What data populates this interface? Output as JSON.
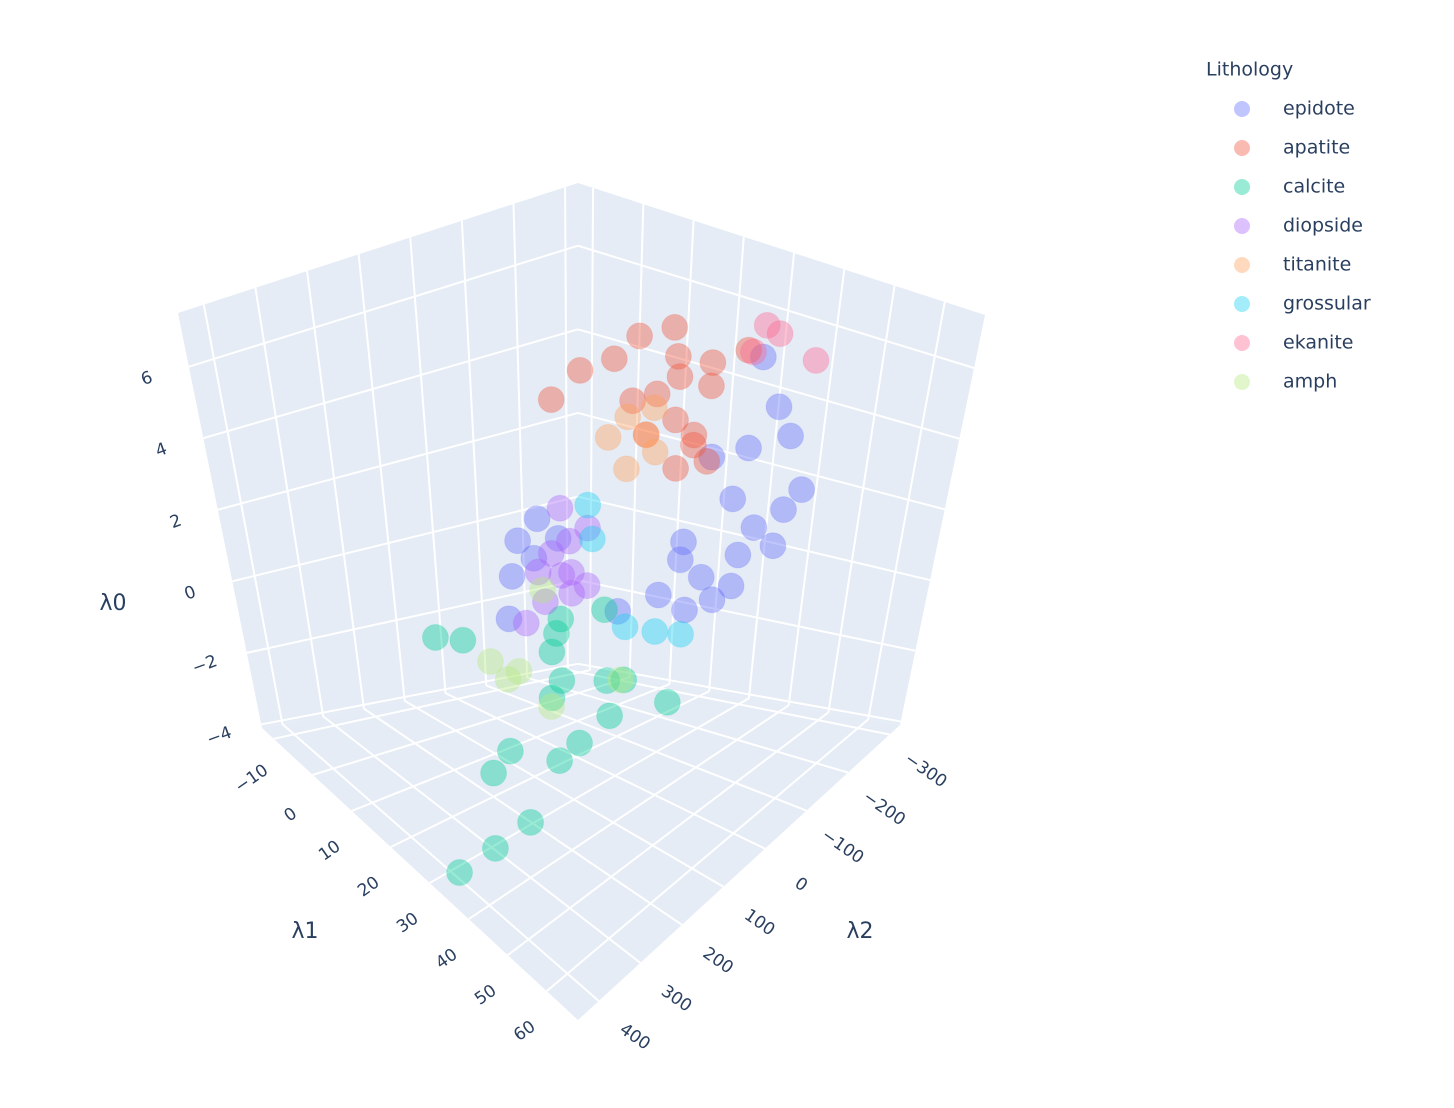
{
  "chart_data": {
    "type": "scatter3d",
    "legend_title": "Lithology",
    "xaxis_title": "λ1",
    "yaxis_title": "λ2",
    "zaxis_title": "λ0",
    "xlim": [
      -13,
      68
    ],
    "ylim": [
      -325,
      450
    ],
    "zlim": [
      -4.1,
      7.5
    ],
    "xticks": [
      {
        "value": -10,
        "label": "−10"
      },
      0,
      10,
      20,
      30,
      40,
      50,
      60
    ],
    "yticks": [
      {
        "value": -300,
        "label": "−300"
      },
      {
        "value": -200,
        "label": "−200"
      },
      {
        "value": -100,
        "label": "−100"
      },
      0,
      100,
      200,
      300,
      400
    ],
    "zticks": [
      {
        "value": -4,
        "label": "−4"
      },
      {
        "value": -2,
        "label": "−2"
      },
      0,
      2,
      4,
      6
    ],
    "grid": true,
    "series": [
      {
        "name": "epidote",
        "color": "#636efa",
        "x": [
          48,
          45,
          53,
          47,
          50,
          44,
          52,
          58,
          58,
          55,
          50,
          52,
          42,
          53,
          56,
          49,
          22,
          17,
          18,
          17,
          36,
          20,
          24,
          46,
          51
        ],
        "y": [
          -3,
          10,
          -20,
          20,
          -10,
          5,
          -40,
          -104,
          -69,
          -70,
          -80,
          -116,
          30,
          -60,
          -90,
          -50,
          100,
          110,
          105,
          120,
          60,
          90,
          75,
          -30,
          -55
        ],
        "z": [
          1.5,
          2.3,
          1.4,
          0.8,
          1.0,
          1.8,
          2.0,
          3.5,
          5.0,
          5.6,
          6.6,
          1.8,
          1.0,
          2.6,
          3.0,
          3.2,
          2.3,
          0.7,
          1.6,
          -0.3,
          0.5,
          1.2,
          1.8,
          4.2,
          4.5
        ]
      },
      {
        "name": "apatite",
        "color": "#EF553B",
        "x": [
          35.6,
          33,
          38,
          36,
          34,
          30,
          20,
          16,
          25,
          40,
          42,
          37,
          32,
          39,
          45,
          35,
          28,
          41
        ],
        "y": [
          -54,
          -40,
          -70,
          -50,
          -60,
          -20,
          -10,
          10,
          -30,
          -80,
          -60,
          -45,
          -30,
          -90,
          -100,
          -65,
          -50,
          -40
        ],
        "z": [
          4.6,
          5.2,
          4.0,
          6.2,
          6.8,
          5.0,
          5.4,
          4.6,
          5.8,
          5.5,
          3.8,
          3.5,
          4.2,
          6.0,
          6.5,
          5.6,
          6.4,
          4.5
        ]
      },
      {
        "name": "calcite",
        "color": "#00cc96",
        "x": [
          32,
          26,
          28,
          7,
          44.5,
          36.4,
          40,
          29.5,
          36.4,
          35.6,
          34.4,
          37.6,
          29,
          31,
          26,
          12.5,
          34,
          36.4,
          27
        ],
        "y": [
          396,
          90,
          229,
          194,
          24,
          86,
          113,
          283,
          264,
          341,
          175,
          159,
          140,
          136,
          100,
          183,
          70,
          47,
          120
        ],
        "z": [
          -4.0,
          0,
          -2.36,
          -1,
          -1.5,
          -1,
          -1.5,
          -2.5,
          -3.3,
          -3.5,
          -2.5,
          -2,
          -1.5,
          -1,
          -0.3,
          -0.8,
          0.5,
          -1.2,
          -0.6
        ]
      },
      {
        "name": "diopside",
        "color": "#ab63fa",
        "x": [
          25.5,
          24,
          27,
          23,
          26,
          28,
          22,
          20,
          29,
          25,
          30
        ],
        "y": [
          82,
          90,
          75,
          95,
          70,
          85,
          100,
          110,
          60,
          80,
          70
        ],
        "z": [
          1.0,
          1.5,
          0.6,
          0.3,
          1.8,
          1.2,
          1.0,
          -0.3,
          2.2,
          2.6,
          0.9
        ]
      },
      {
        "name": "titanite",
        "color": "#FFA15A",
        "x": [
          29.6,
          27,
          31,
          25,
          28,
          32
        ],
        "y": [
          -54,
          -40,
          -60,
          -20,
          -30,
          -45
        ],
        "z": [
          4.0,
          4.4,
          3.6,
          3.9,
          3.2,
          4.8
        ]
      },
      {
        "name": "grossular",
        "color": "#19d3f3",
        "x": [
          26,
          35.6,
          44.5,
          40.5,
          28
        ],
        "y": [
          31,
          39,
          1,
          20,
          40
        ],
        "z": [
          2.5,
          0,
          0,
          0,
          1.8
        ]
      },
      {
        "name": "ekanite",
        "color": "#FF6692",
        "x": [
          42.5,
          49,
          41,
          44
        ],
        "y": [
          -158,
          -197,
          -150,
          -170
        ],
        "z": [
          6.8,
          6.0,
          6.1,
          6.6
        ]
      },
      {
        "name": "amph",
        "color": "#B6E880",
        "x": [
          20.6,
          24.7,
          26,
          28,
          24,
          36
        ],
        "y": [
          198,
          198,
          185,
          132,
          110,
          50
        ],
        "z": [
          -0.8,
          -1,
          -0.8,
          -1.8,
          0.7,
          -1.2
        ]
      }
    ]
  }
}
